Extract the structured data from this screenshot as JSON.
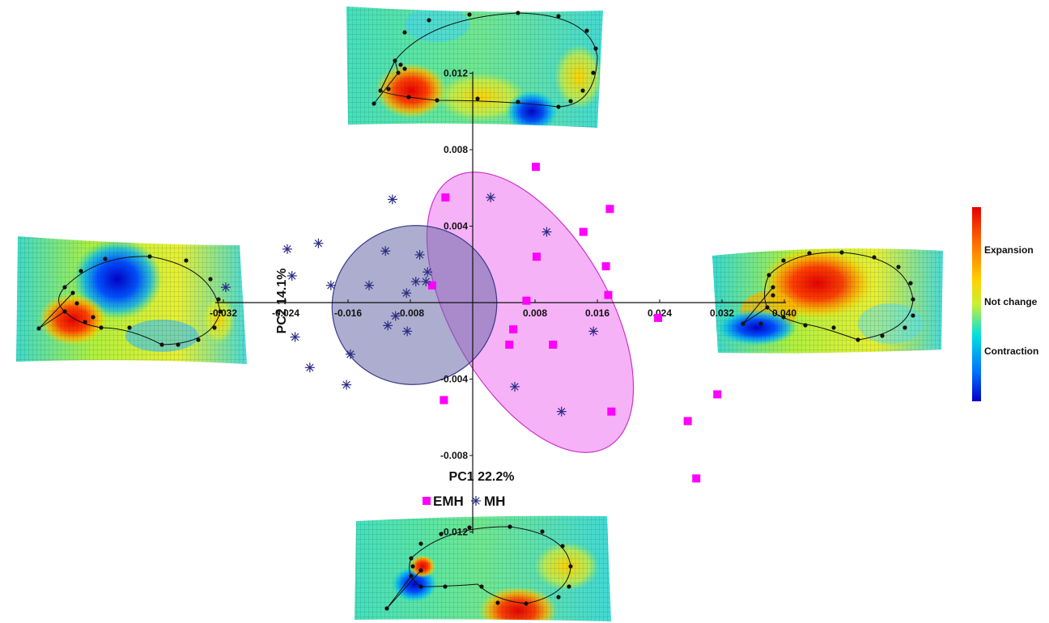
{
  "chart_data": {
    "type": "scatter",
    "xlabel": "PC1 22.2%",
    "ylabel": "PC2 14.1%",
    "xlim": [
      -0.032,
      0.04
    ],
    "ylim": [
      -0.012,
      0.012
    ],
    "x_ticks": [
      "-0.032",
      "-0.024",
      "-0.016",
      "-0.008",
      "0.008",
      "0.016",
      "0.024",
      "0.032",
      "0.040"
    ],
    "y_ticks": [
      "0.012",
      "0.008",
      "0.004",
      "-0.004",
      "-0.008",
      "-0.012"
    ],
    "series": [
      {
        "name": "EMH",
        "marker": "square",
        "color": "#ff00ff",
        "ellipse_color": "#ee66ee",
        "points": [
          [
            0.0081,
            0.0071
          ],
          [
            0.0176,
            0.0049
          ],
          [
            0.0142,
            0.0037
          ],
          [
            0.0082,
            0.0024
          ],
          [
            0.0171,
            0.0019
          ],
          [
            0.0174,
            0.0004
          ],
          [
            0.0069,
            0.0001
          ],
          [
            0.0238,
            -0.0008
          ],
          [
            0.0052,
            -0.0014
          ],
          [
            0.0047,
            -0.0022
          ],
          [
            0.0103,
            -0.0022
          ],
          [
            -0.0035,
            0.0055
          ],
          [
            -0.0052,
            0.0009
          ],
          [
            -0.0037,
            -0.0051
          ],
          [
            0.0314,
            -0.0048
          ],
          [
            0.0178,
            -0.0057
          ],
          [
            0.0276,
            -0.0062
          ],
          [
            0.0287,
            -0.0092
          ]
        ]
      },
      {
        "name": "MH",
        "marker": "asterisk",
        "color": "#2b2b85",
        "ellipse_color": "#6a6aa8",
        "points": [
          [
            -0.0317,
            0.0008
          ],
          [
            -0.0103,
            0.0054
          ],
          [
            0.0023,
            0.0055
          ],
          [
            0.0095,
            0.0037
          ],
          [
            -0.0238,
            0.0028
          ],
          [
            -0.0198,
            0.0031
          ],
          [
            -0.0232,
            0.0014
          ],
          [
            -0.0112,
            0.0027
          ],
          [
            -0.0068,
            0.0025
          ],
          [
            -0.0058,
            0.0016
          ],
          [
            -0.006,
            0.0011
          ],
          [
            -0.0073,
            0.0011
          ],
          [
            -0.0182,
            0.0009
          ],
          [
            -0.0133,
            0.0009
          ],
          [
            -0.0085,
            0.0005
          ],
          [
            -0.0099,
            -0.0007
          ],
          [
            -0.0109,
            -0.0012
          ],
          [
            -0.0084,
            -0.0015
          ],
          [
            -0.0228,
            -0.0018
          ],
          [
            -0.0157,
            -0.0027
          ],
          [
            -0.0209,
            -0.0034
          ],
          [
            -0.0162,
            -0.0043
          ],
          [
            0.0054,
            -0.0044
          ],
          [
            0.0155,
            -0.0015
          ],
          [
            0.0114,
            -0.0057
          ]
        ]
      }
    ],
    "legend": {
      "placement": "bottom",
      "entries": [
        "EMH",
        "MH"
      ]
    },
    "color_scale": {
      "labels": [
        "Expansion",
        "Not change",
        "Contraction"
      ],
      "colors": [
        "#e60000",
        "#ff6a00",
        "#ffd200",
        "#c8f032",
        "#00e0e0",
        "#0070ff",
        "#0000c8"
      ]
    }
  }
}
